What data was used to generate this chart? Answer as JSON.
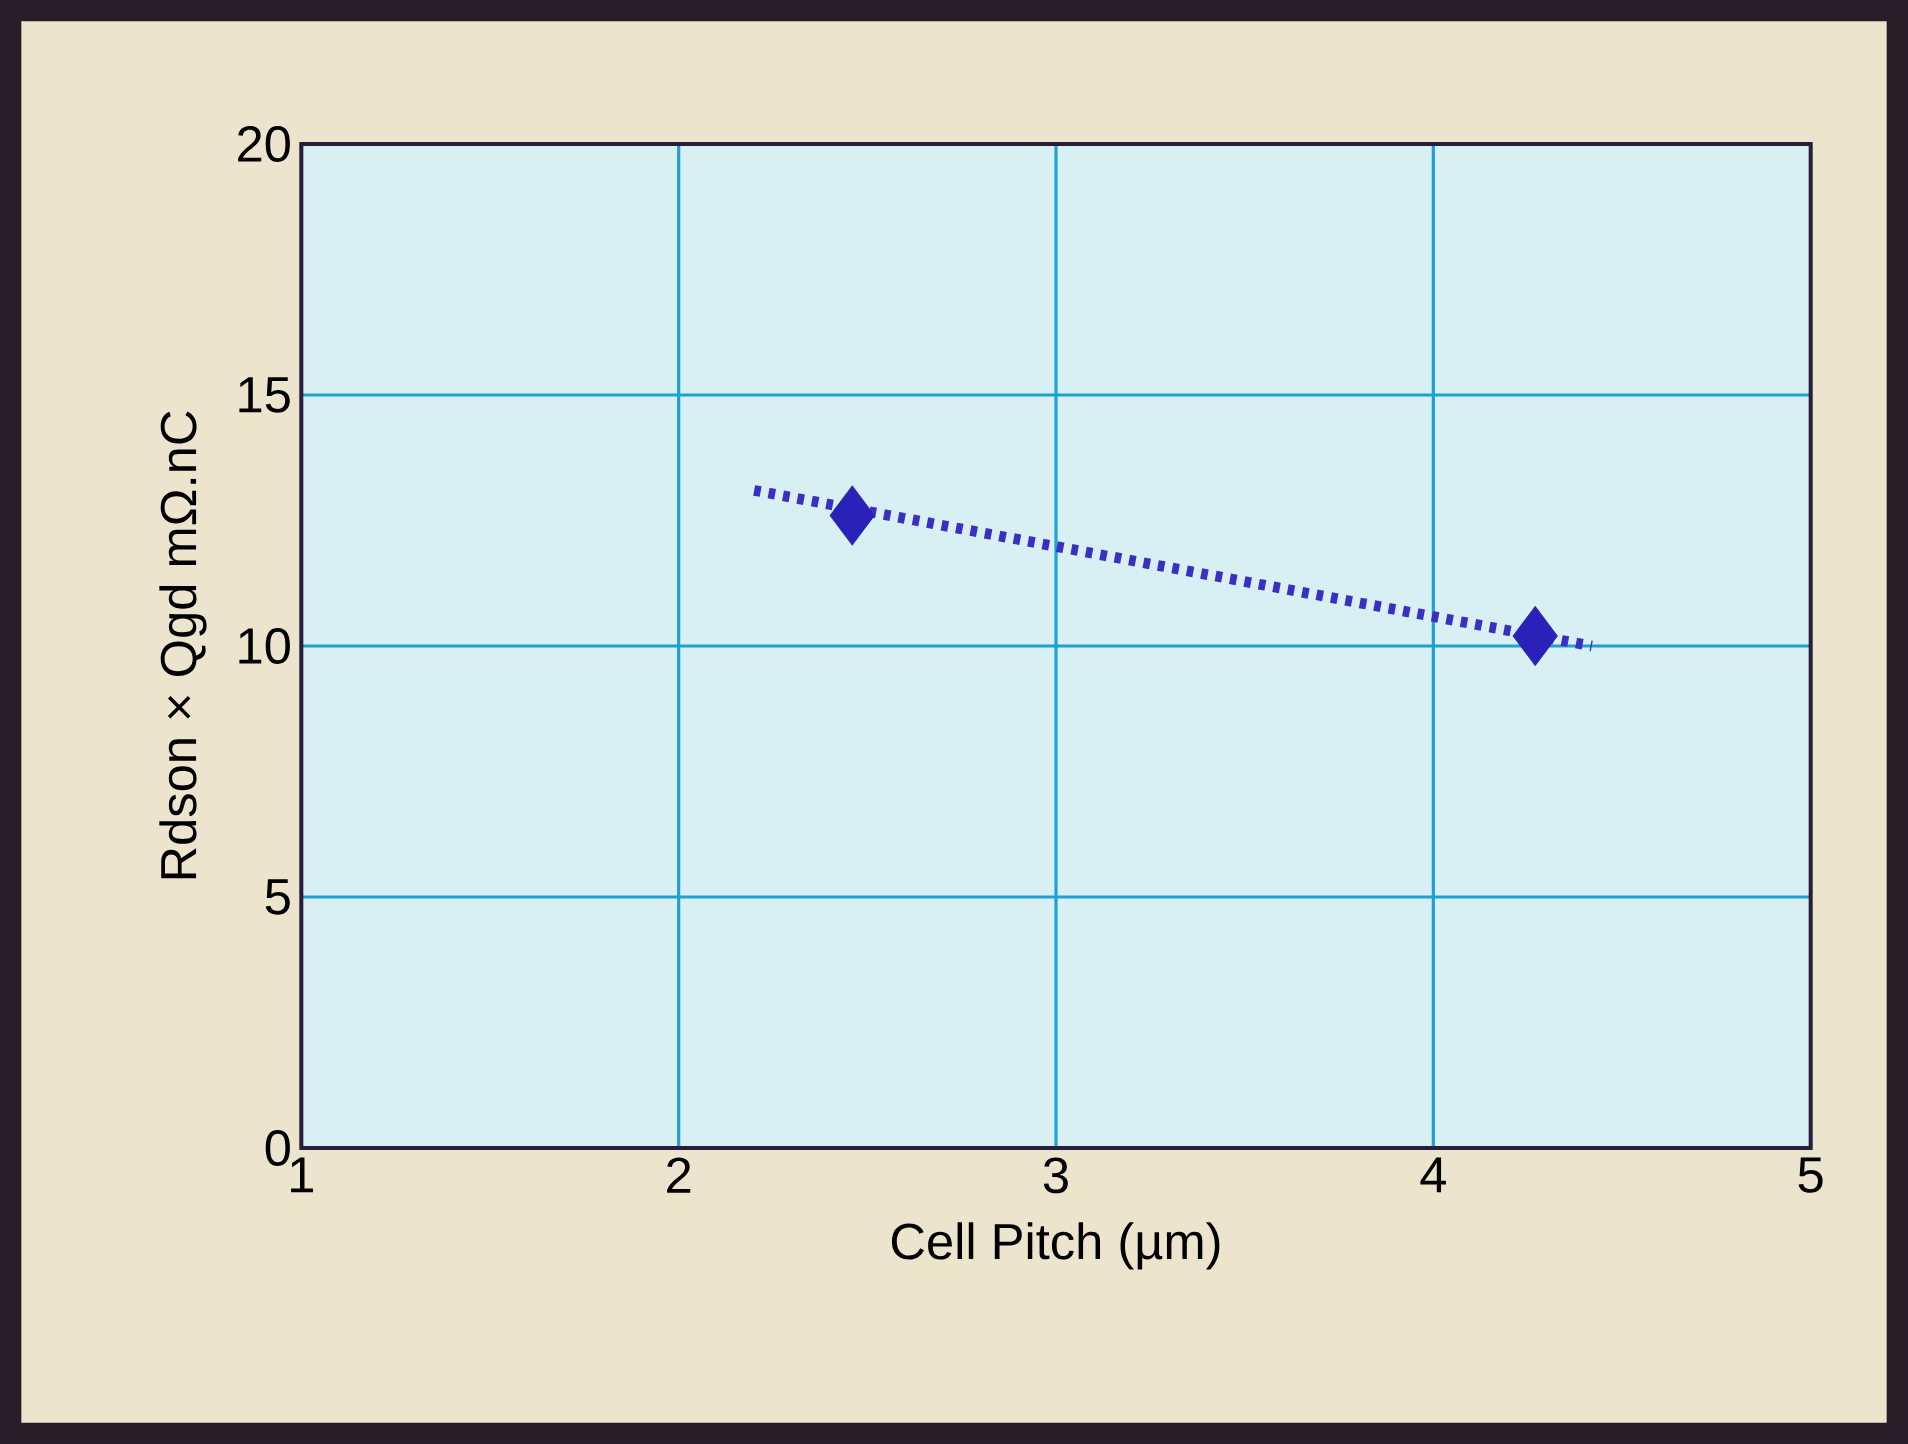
{
  "chart_data": {
    "type": "scatter",
    "xlabel": "Cell Pitch (µm)",
    "ylabel": "Rdson × Qgd mΩ.nC",
    "xlim": [
      1,
      5
    ],
    "ylim": [
      0,
      20
    ],
    "xticks": [
      1,
      2,
      3,
      4,
      5
    ],
    "yticks": [
      0,
      5,
      10,
      15,
      20
    ],
    "grid": true,
    "series": [
      {
        "color": "#2a22b8",
        "marker": "diamond",
        "x": [
          2.46,
          4.27
        ],
        "values": [
          12.6,
          10.2
        ]
      },
      {
        "type": "line",
        "color": "#3a2fc0",
        "line_style": "dotted",
        "marker": "none",
        "x": [
          2.2,
          4.42
        ],
        "values": [
          13.1,
          10.0
        ]
      }
    ]
  }
}
